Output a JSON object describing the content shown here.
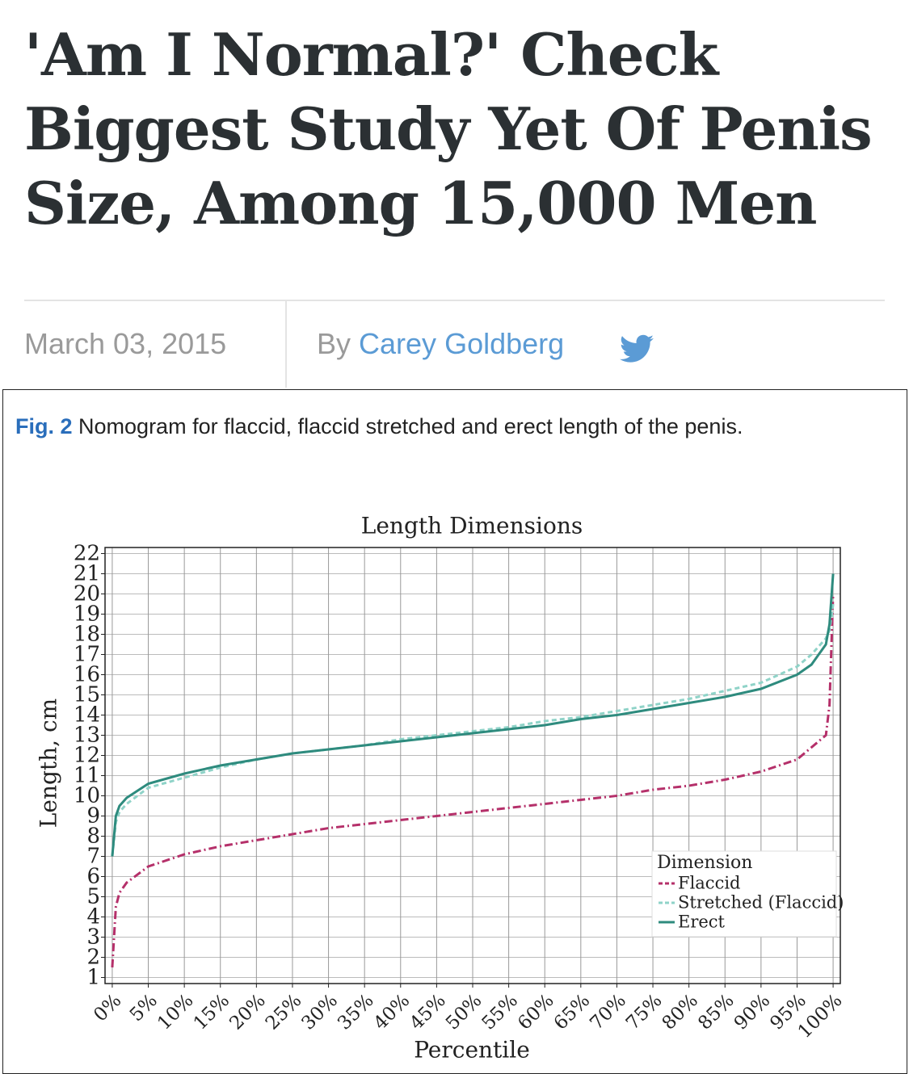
{
  "header": {
    "title": [
      "'Am I Normal?' Check",
      "Biggest Study Yet Of Penis",
      "Size, Among 15,000 Men"
    ],
    "date": "March 03, 2015",
    "by": "By",
    "author": "Carey Goldberg"
  },
  "figure": {
    "label": "Fig. 2",
    "caption": "Nomogram for flaccid, flaccid stretched and erect length of the penis."
  },
  "chart_data": {
    "type": "line",
    "title": "Length Dimensions",
    "x_label": "Percentile",
    "y_label": "Length, cm",
    "x": [
      0,
      0.5,
      1,
      2,
      5,
      10,
      15,
      20,
      25,
      30,
      35,
      40,
      45,
      50,
      55,
      60,
      65,
      70,
      75,
      80,
      85,
      90,
      95,
      97,
      99,
      99.5,
      100
    ],
    "series": [
      {
        "name": "Flaccid",
        "color": "#b5306a",
        "dash": "10 4 2 4",
        "values": [
          1.5,
          4.5,
          5.2,
          5.7,
          6.5,
          7.1,
          7.5,
          7.8,
          8.1,
          8.4,
          8.6,
          8.8,
          9.0,
          9.2,
          9.4,
          9.6,
          9.8,
          10.0,
          10.3,
          10.5,
          10.8,
          11.2,
          11.8,
          12.4,
          13.0,
          14.5,
          20
        ]
      },
      {
        "name": "Stretched (Flaccid)",
        "color": "#8fd3c8",
        "dash": "6 4",
        "values": [
          7,
          8.7,
          9.2,
          9.6,
          10.4,
          10.9,
          11.4,
          11.8,
          12.1,
          12.3,
          12.5,
          12.8,
          13.0,
          13.2,
          13.4,
          13.7,
          13.9,
          14.2,
          14.5,
          14.8,
          15.2,
          15.6,
          16.4,
          17.0,
          17.8,
          18.2,
          19.5
        ]
      },
      {
        "name": "Erect",
        "color": "#2e8b7e",
        "dash": "none",
        "values": [
          7,
          9,
          9.5,
          9.9,
          10.6,
          11.1,
          11.5,
          11.8,
          12.1,
          12.3,
          12.5,
          12.7,
          12.9,
          13.1,
          13.3,
          13.5,
          13.8,
          14.0,
          14.3,
          14.6,
          14.9,
          15.3,
          16.0,
          16.5,
          17.5,
          18.5,
          21
        ]
      }
    ],
    "legend_title": "Dimension",
    "legend": "lower right",
    "grid": true,
    "xlim": [
      -1,
      101
    ],
    "ylim": [
      0.7,
      22.3
    ],
    "xticks": [
      {
        "value": 0,
        "label": "0%"
      },
      {
        "value": 5,
        "label": "5%"
      },
      {
        "value": 10,
        "label": "10%"
      },
      {
        "value": 15,
        "label": "15%"
      },
      {
        "value": 20,
        "label": "20%"
      },
      {
        "value": 25,
        "label": "25%"
      },
      {
        "value": 30,
        "label": "30%"
      },
      {
        "value": 35,
        "label": "35%"
      },
      {
        "value": 40,
        "label": "40%"
      },
      {
        "value": 45,
        "label": "45%"
      },
      {
        "value": 50,
        "label": "50%"
      },
      {
        "value": 55,
        "label": "55%"
      },
      {
        "value": 60,
        "label": "60%"
      },
      {
        "value": 65,
        "label": "65%"
      },
      {
        "value": 70,
        "label": "70%"
      },
      {
        "value": 75,
        "label": "75%"
      },
      {
        "value": 80,
        "label": "80%"
      },
      {
        "value": 85,
        "label": "85%"
      },
      {
        "value": 90,
        "label": "90%"
      },
      {
        "value": 95,
        "label": "95%"
      },
      {
        "value": 100,
        "label": "100%"
      }
    ],
    "yticks": [
      1,
      2,
      3,
      4,
      5,
      6,
      7,
      8,
      9,
      10,
      11,
      12,
      13,
      14,
      15,
      16,
      17,
      18,
      19,
      20,
      21,
      22
    ]
  }
}
